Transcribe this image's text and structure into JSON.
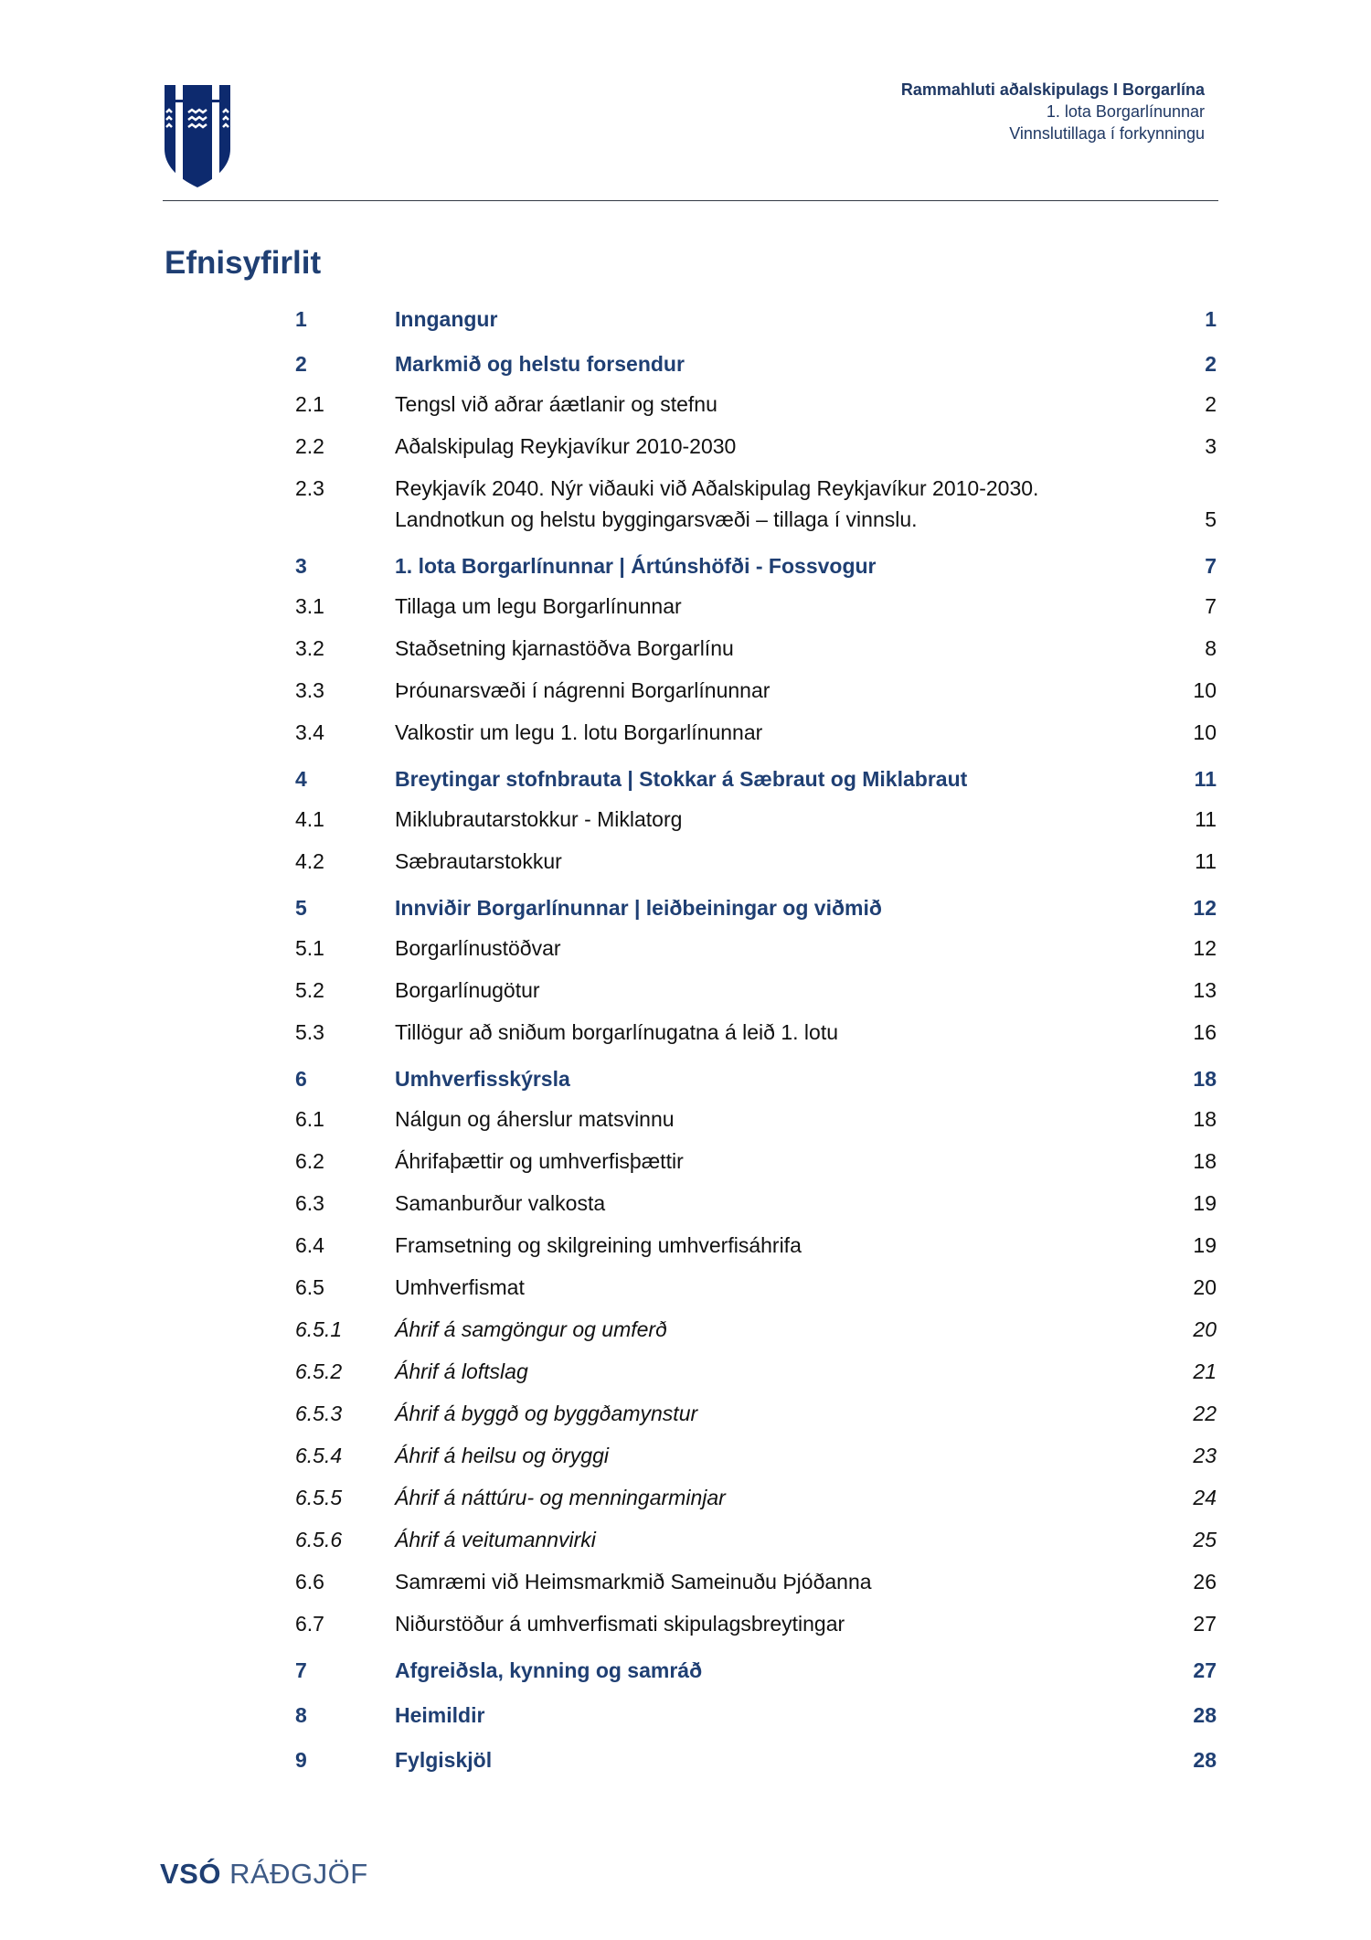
{
  "header": {
    "line1": "Rammahluti aðalskipulags I Borgarlína",
    "line2": "1. lota Borgarlínunnar",
    "line3": "Vinnslutillaga í forkynningu"
  },
  "logo": {
    "name": "reykjavik-coat-of-arms",
    "color": "#0d2a6e"
  },
  "title": "Efnisyfirlit",
  "colors": {
    "heading": "#1f3f73",
    "text": "#111111"
  },
  "toc": [
    {
      "num": "1",
      "text": "Inngangur",
      "page": "1",
      "level": "chapter"
    },
    {
      "num": "2",
      "text": "Markmið og helstu forsendur",
      "page": "2",
      "level": "chapter"
    },
    {
      "num": "2.1",
      "text": "Tengsl við aðrar áætlanir og stefnu",
      "page": "2",
      "level": "section"
    },
    {
      "num": "2.2",
      "text": "Aðalskipulag Reykjavíkur 2010-2030",
      "page": "3",
      "level": "section"
    },
    {
      "num": "2.3",
      "text": "Reykjavík 2040. Nýr viðauki við Aðalskipulag Reykjavíkur 2010-2030.",
      "text2": "Landnotkun og helstu byggingarsvæði – tillaga í vinnslu.",
      "page": "5",
      "level": "section"
    },
    {
      "num": "3",
      "text": "1. lota Borgarlínunnar | Ártúnshöfði - Fossvogur",
      "page": "7",
      "level": "chapter"
    },
    {
      "num": "3.1",
      "text": "Tillaga um legu Borgarlínunnar",
      "page": "7",
      "level": "section"
    },
    {
      "num": "3.2",
      "text": "Staðsetning kjarnastöðva Borgarlínu",
      "page": "8",
      "level": "section"
    },
    {
      "num": "3.3",
      "text": "Þróunarsvæði í nágrenni Borgarlínunnar",
      "page": "10",
      "level": "section"
    },
    {
      "num": "3.4",
      "text": "Valkostir um legu 1. lotu Borgarlínunnar",
      "page": "10",
      "level": "section"
    },
    {
      "num": "4",
      "text": "Breytingar stofnbrauta | Stokkar á Sæbraut og Miklabraut",
      "page": "11",
      "level": "chapter"
    },
    {
      "num": "4.1",
      "text": "Miklubrautarstokkur - Miklatorg",
      "page": "11",
      "level": "section"
    },
    {
      "num": "4.2",
      "text": "Sæbrautarstokkur",
      "page": "11",
      "level": "section"
    },
    {
      "num": "5",
      "text": "Innviðir Borgarlínunnar | leiðbeiningar og viðmið",
      "page": "12",
      "level": "chapter"
    },
    {
      "num": "5.1",
      "text": "Borgarlínustöðvar",
      "page": "12",
      "level": "section"
    },
    {
      "num": "5.2",
      "text": "Borgarlínugötur",
      "page": "13",
      "level": "section"
    },
    {
      "num": "5.3",
      "text": "Tillögur að sniðum borgarlínugatna á leið 1. lotu",
      "page": "16",
      "level": "section"
    },
    {
      "num": "6",
      "text": "Umhverfisskýrsla",
      "page": "18",
      "level": "chapter"
    },
    {
      "num": "6.1",
      "text": "Nálgun og áherslur matsvinnu",
      "page": "18",
      "level": "section"
    },
    {
      "num": "6.2",
      "text": "Áhrifaþættir og umhverfisþættir",
      "page": "18",
      "level": "section"
    },
    {
      "num": "6.3",
      "text": "Samanburður valkosta",
      "page": "19",
      "level": "section"
    },
    {
      "num": "6.4",
      "text": "Framsetning og skilgreining umhverfisáhrifa",
      "page": "19",
      "level": "section"
    },
    {
      "num": "6.5",
      "text": "Umhverfismat",
      "page": "20",
      "level": "section"
    },
    {
      "num": "6.5.1",
      "text": "Áhrif á samgöngur og umferð",
      "page": "20",
      "level": "subsection"
    },
    {
      "num": "6.5.2",
      "text": "Áhrif á loftslag",
      "page": "21",
      "level": "subsection"
    },
    {
      "num": "6.5.3",
      "text": "Áhrif á byggð og byggðamynstur",
      "page": "22",
      "level": "subsection"
    },
    {
      "num": "6.5.4",
      "text": "Áhrif á heilsu og öryggi",
      "page": "23",
      "level": "subsection"
    },
    {
      "num": "6.5.5",
      "text": "Áhrif á náttúru- og menningarminjar",
      "page": "24",
      "level": "subsection"
    },
    {
      "num": "6.5.6",
      "text": "Áhrif á veitumannvirki",
      "page": "25",
      "level": "subsection"
    },
    {
      "num": "6.6",
      "text": "Samræmi við Heimsmarkmið Sameinuðu Þjóðanna",
      "page": "26",
      "level": "section"
    },
    {
      "num": "6.7",
      "text": "Niðurstöður á umhverfismati skipulagsbreytingar",
      "page": "27",
      "level": "section"
    },
    {
      "num": "7",
      "text": "Afgreiðsla, kynning og samráð",
      "page": "27",
      "level": "chapter"
    },
    {
      "num": "8",
      "text": "Heimildir",
      "page": "28",
      "level": "chapter"
    },
    {
      "num": "9",
      "text": "Fylgiskjöl",
      "page": "28",
      "level": "chapter"
    }
  ],
  "footer": {
    "brand_bold": "VSÓ",
    "brand_light": "RÁÐGJÖF"
  }
}
